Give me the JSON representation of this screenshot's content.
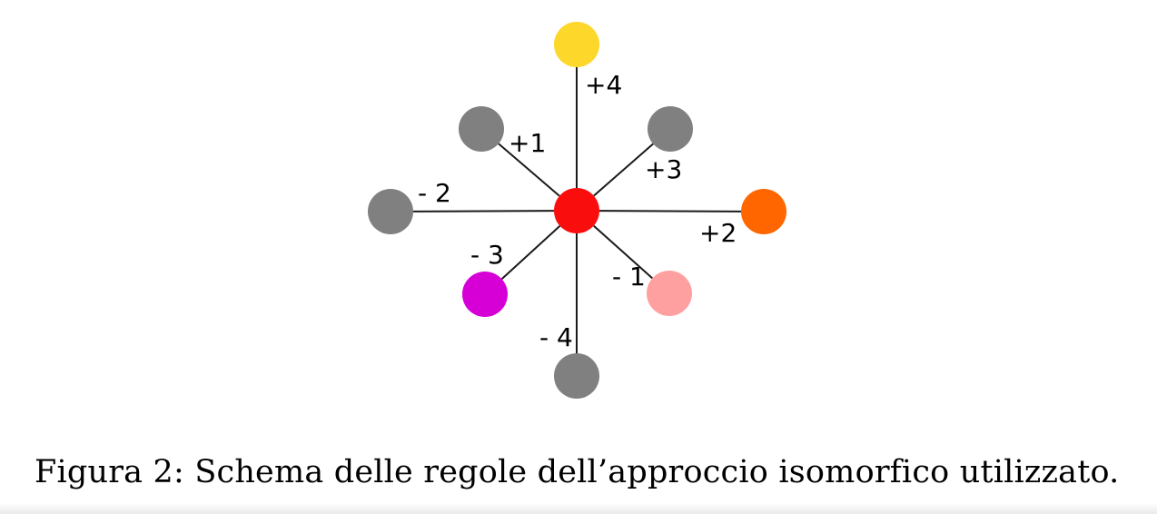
{
  "figure": {
    "caption": "Figura 2: Schema delle regole dell’approccio isomorfico utilizzato."
  },
  "colors": {
    "center": "#fa0d0d",
    "gray": "#808080",
    "plus4": "#fdd72a",
    "plus2": "#ff6600",
    "minus3": "#d600d6",
    "minus1": "#ffa0a0"
  },
  "diagram": {
    "center": {
      "name": "center-node",
      "color": "#fa0d0d"
    },
    "nodes": [
      {
        "name": "node-plus4",
        "label": "+4",
        "color": "#fdd72a"
      },
      {
        "name": "node-plus1",
        "label": "+1",
        "color": "#808080"
      },
      {
        "name": "node-plus3",
        "label": "+3",
        "color": "#808080"
      },
      {
        "name": "node-minus2",
        "label": "- 2",
        "color": "#808080"
      },
      {
        "name": "node-plus2",
        "label": "+2",
        "color": "#ff6600"
      },
      {
        "name": "node-minus3",
        "label": "- 3",
        "color": "#d600d6"
      },
      {
        "name": "node-minus1",
        "label": "- 1",
        "color": "#ffa0a0"
      },
      {
        "name": "node-minus4",
        "label": "- 4",
        "color": "#808080"
      }
    ]
  }
}
